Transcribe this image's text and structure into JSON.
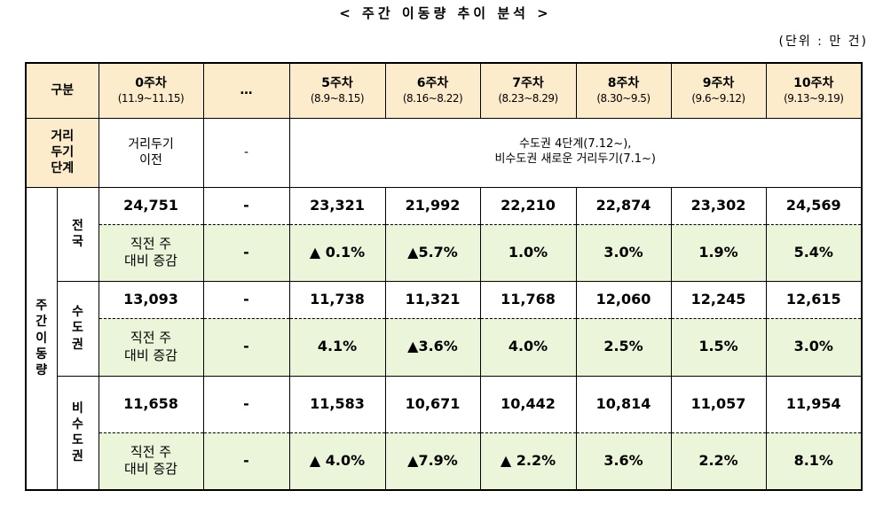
{
  "title": "< 주간 이동량 추이 분석 >",
  "unit": "(단위 : 만 건)",
  "table": {
    "header": {
      "label": "구분",
      "columns": [
        {
          "week": "0주차",
          "period": "(11.9~11.15)"
        },
        {
          "week": "…"
        },
        {
          "week": "5주차",
          "period": "(8.9~8.15)"
        },
        {
          "week": "6주차",
          "period": "(8.16~8.22)"
        },
        {
          "week": "7주차",
          "period": "(8.23~8.29)"
        },
        {
          "week": "8주차",
          "period": "(8.30~9.5)"
        },
        {
          "week": "9주차",
          "period": "(9.6~9.12)"
        },
        {
          "week": "10주차",
          "period": "(9.13~9.19)"
        }
      ]
    },
    "distancing": {
      "label": "거리\n두기\n단계",
      "before": "거리두기\n이전",
      "gap": "-",
      "recent": "수도권 4단계(7.12~),\n비수도권 새로운 거리두기(7.1~)"
    },
    "group_label": "주\n간\n이\n동\n량",
    "regions": [
      {
        "name": "전\n국",
        "counts": [
          "24,751",
          "-",
          "23,321",
          "21,992",
          "22,210",
          "22,874",
          "23,302",
          "24,569"
        ],
        "change_label": "직전 주\n대비 증감",
        "changes": [
          "-",
          "▲ 0.1%",
          "▲5.7%",
          "1.0%",
          "3.0%",
          "1.9%",
          "5.4%"
        ]
      },
      {
        "name": "수\n도\n권",
        "counts": [
          "13,093",
          "-",
          "11,738",
          "11,321",
          "11,768",
          "12,060",
          "12,245",
          "12,615"
        ],
        "change_label": "직전 주\n대비 증감",
        "changes": [
          "-",
          "4.1%",
          "▲3.6%",
          "4.0%",
          "2.5%",
          "1.5%",
          "3.0%"
        ]
      },
      {
        "name": "비\n수\n도\n권",
        "counts": [
          "11,658",
          "-",
          "11,583",
          "10,671",
          "10,442",
          "10,814",
          "11,057",
          "11,954"
        ],
        "change_label": "직전 주\n대비 증감",
        "changes": [
          "-",
          "▲ 4.0%",
          "▲7.9%",
          "▲ 2.2%",
          "3.6%",
          "2.2%",
          "8.1%"
        ]
      }
    ]
  }
}
